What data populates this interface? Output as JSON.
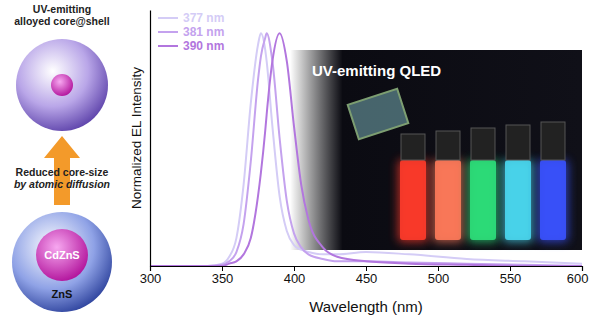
{
  "chart_data": {
    "type": "line",
    "title": "UV-emitting QLED",
    "x_label": "Wavelength (nm)",
    "y_label": "Normalized EL Intensity",
    "x": [
      300,
      340,
      350,
      355,
      360,
      365,
      370,
      375,
      377,
      380,
      381,
      385,
      390,
      395,
      400,
      405,
      410,
      420,
      430,
      450,
      480,
      520,
      560,
      600
    ],
    "series": [
      {
        "name": "377 nm",
        "color": "#d4ccf6",
        "values": [
          0,
          0,
          0.01,
          0.04,
          0.12,
          0.35,
          0.7,
          0.95,
          1.0,
          0.93,
          0.88,
          0.6,
          0.3,
          0.15,
          0.09,
          0.07,
          0.06,
          0.05,
          0.05,
          0.06,
          0.05,
          0.03,
          0.02,
          0.01
        ]
      },
      {
        "name": "381 nm",
        "color": "#c4a2ee",
        "values": [
          0,
          0,
          0.005,
          0.02,
          0.06,
          0.18,
          0.45,
          0.8,
          0.9,
          0.98,
          1.0,
          0.88,
          0.55,
          0.28,
          0.14,
          0.08,
          0.05,
          0.03,
          0.02,
          0.02,
          0.015,
          0.01,
          0.005,
          0
        ]
      },
      {
        "name": "390 nm",
        "color": "#b276de",
        "values": [
          0,
          0,
          0,
          0.01,
          0.02,
          0.05,
          0.12,
          0.3,
          0.4,
          0.58,
          0.65,
          0.88,
          1.0,
          0.88,
          0.6,
          0.35,
          0.2,
          0.08,
          0.04,
          0.02,
          0.01,
          0.005,
          0,
          0
        ]
      }
    ],
    "xlim": [
      300,
      600
    ],
    "xticks": [
      300,
      350,
      400,
      450,
      500,
      550,
      600
    ],
    "ylim": [
      0,
      1.1
    ],
    "tick_labels": "x",
    "legend": "upper left",
    "grid": false
  },
  "diagram": {
    "top_label": [
      "UV-emitting",
      "alloyed core@shell"
    ],
    "arrow_label": [
      "Reduced core-size",
      "by atomic diffusion"
    ],
    "core_label": "CdZnS",
    "shell_label": "ZnS"
  }
}
